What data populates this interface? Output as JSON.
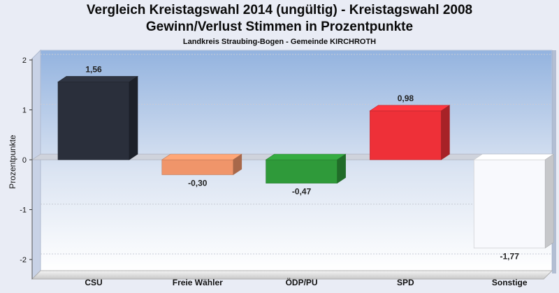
{
  "header": {
    "title": "Vergleich Kreistagswahl 2014 (ungültig) - Kreistagswahl 2008",
    "subtitle": "Gewinn/Verlust Stimmen in Prozentpunkte",
    "subsubtitle": "Landkreis Straubing-Bogen - Gemeinde KIRCHROTH"
  },
  "chart_data": {
    "type": "bar",
    "title": "Vergleich Kreistagswahl 2014 (ungültig) - Kreistagswahl 2008",
    "subtitle": "Gewinn/Verlust Stimmen in Prozentpunkte",
    "xlabel": "",
    "ylabel": "Prozentpunkte",
    "categories": [
      "CSU",
      "Freie Wähler",
      "ÖDP/PU",
      "SPD",
      "Sonstige"
    ],
    "values": [
      1.56,
      -0.3,
      -0.47,
      0.98,
      -1.77
    ],
    "value_labels": [
      "1,56",
      "-0,30",
      "-0,47",
      "0,98",
      "-1,77"
    ],
    "colors": [
      "#2a2f3b",
      "#f0956a",
      "#2f9a3a",
      "#ee3038",
      "#f8f9fd"
    ],
    "ylim": [
      -2.2,
      2.0
    ],
    "yticks": [
      2,
      1,
      0,
      -1,
      -2
    ],
    "ytick_labels": [
      "2",
      "1",
      "0",
      "-1",
      "-2"
    ],
    "grid": true,
    "legend": "none",
    "style": "3d"
  }
}
